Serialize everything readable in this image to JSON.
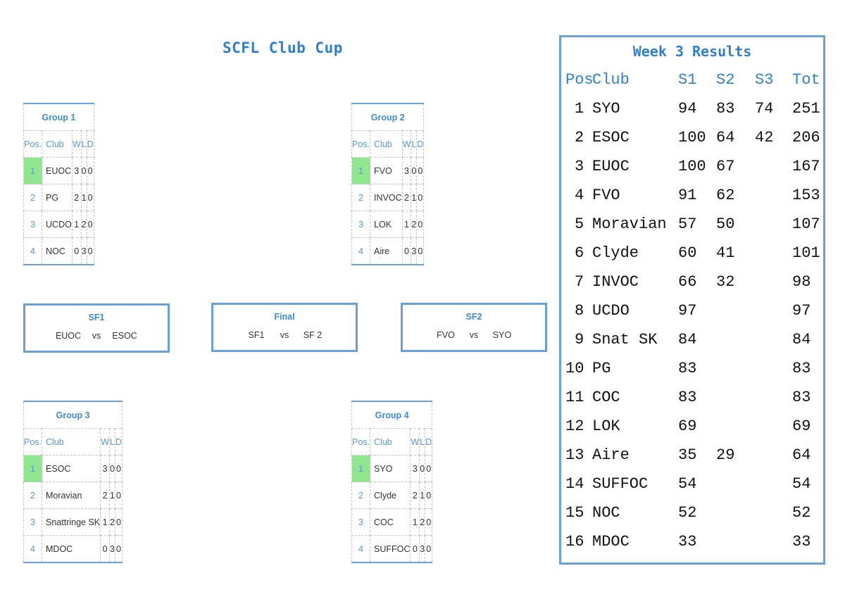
{
  "title": "SCFL Club Cup",
  "col_headers": {
    "pos": "Pos.",
    "club": "Club",
    "w": "W",
    "l": "L",
    "d": "D"
  },
  "groups": [
    {
      "name": "Group 1",
      "rows": [
        {
          "pos": "1",
          "club": "EUOC",
          "w": "3",
          "l": "0",
          "d": "0"
        },
        {
          "pos": "2",
          "club": "PG",
          "w": "2",
          "l": "1",
          "d": "0"
        },
        {
          "pos": "3",
          "club": "UCDO",
          "w": "1",
          "l": "2",
          "d": "0"
        },
        {
          "pos": "4",
          "club": "NOC",
          "w": "0",
          "l": "3",
          "d": "0"
        }
      ]
    },
    {
      "name": "Group 2",
      "rows": [
        {
          "pos": "1",
          "club": "FVO",
          "w": "3",
          "l": "0",
          "d": "0"
        },
        {
          "pos": "2",
          "club": "INVOC",
          "w": "2",
          "l": "1",
          "d": "0"
        },
        {
          "pos": "3",
          "club": "LOK",
          "w": "1",
          "l": "2",
          "d": "0"
        },
        {
          "pos": "4",
          "club": "Aire",
          "w": "0",
          "l": "3",
          "d": "0"
        }
      ]
    },
    {
      "name": "Group 3",
      "rows": [
        {
          "pos": "1",
          "club": "ESOC",
          "w": "3",
          "l": "0",
          "d": "0"
        },
        {
          "pos": "2",
          "club": "Moravian",
          "w": "2",
          "l": "1",
          "d": "0"
        },
        {
          "pos": "3",
          "club": "Snattringe SK",
          "w": "1",
          "l": "2",
          "d": "0"
        },
        {
          "pos": "4",
          "club": "MDOC",
          "w": "0",
          "l": "3",
          "d": "0"
        }
      ]
    },
    {
      "name": "Group 4",
      "rows": [
        {
          "pos": "1",
          "club": "SYO",
          "w": "3",
          "l": "0",
          "d": "0"
        },
        {
          "pos": "2",
          "club": "Clyde",
          "w": "2",
          "l": "1",
          "d": "0"
        },
        {
          "pos": "3",
          "club": "COC",
          "w": "1",
          "l": "2",
          "d": "0"
        },
        {
          "pos": "4",
          "club": "SUFFOC",
          "w": "0",
          "l": "3",
          "d": "0"
        }
      ]
    }
  ],
  "matches": {
    "sf1": {
      "title": "SF1",
      "a": "EUOC",
      "vs": "vs",
      "b": "ESOC"
    },
    "final": {
      "title": "Final",
      "a": "SF1",
      "vs": "vs",
      "b": "SF 2"
    },
    "sf2": {
      "title": "SF2",
      "a": "FVO",
      "vs": "vs",
      "b": "SYO"
    }
  },
  "results": {
    "title": "Week 3 Results",
    "headers": {
      "pos": "Pos",
      "club": "Club",
      "s1": "S1",
      "s2": "S2",
      "s3": "S3",
      "tot": "Tot"
    },
    "rows": [
      {
        "pos": "1",
        "club": "SYO",
        "s1": "94",
        "s2": "83",
        "s3": "74",
        "tot": "251"
      },
      {
        "pos": "2",
        "club": "ESOC",
        "s1": "100",
        "s2": "64",
        "s3": "42",
        "tot": "206"
      },
      {
        "pos": "3",
        "club": "EUOC",
        "s1": "100",
        "s2": "67",
        "s3": "",
        "tot": "167"
      },
      {
        "pos": "4",
        "club": "FVO",
        "s1": "91",
        "s2": "62",
        "s3": "",
        "tot": "153"
      },
      {
        "pos": "5",
        "club": "Moravian",
        "s1": "57",
        "s2": "50",
        "s3": "",
        "tot": "107"
      },
      {
        "pos": "6",
        "club": "Clyde",
        "s1": "60",
        "s2": "41",
        "s3": "",
        "tot": "101"
      },
      {
        "pos": "7",
        "club": "INVOC",
        "s1": "66",
        "s2": "32",
        "s3": "",
        "tot": "98"
      },
      {
        "pos": "8",
        "club": "UCDO",
        "s1": "97",
        "s2": "",
        "s3": "",
        "tot": "97"
      },
      {
        "pos": "9",
        "club": "Snat SK",
        "s1": "84",
        "s2": "",
        "s3": "",
        "tot": "84"
      },
      {
        "pos": "10",
        "club": "PG",
        "s1": "83",
        "s2": "",
        "s3": "",
        "tot": "83"
      },
      {
        "pos": "11",
        "club": "COC",
        "s1": "83",
        "s2": "",
        "s3": "",
        "tot": "83"
      },
      {
        "pos": "12",
        "club": "LOK",
        "s1": "69",
        "s2": "",
        "s3": "",
        "tot": "69"
      },
      {
        "pos": "13",
        "club": "Aire",
        "s1": "35",
        "s2": "29",
        "s3": "",
        "tot": "64"
      },
      {
        "pos": "14",
        "club": "SUFFOC",
        "s1": "54",
        "s2": "",
        "s3": "",
        "tot": "54"
      },
      {
        "pos": "15",
        "club": "NOC",
        "s1": "52",
        "s2": "",
        "s3": "",
        "tot": "52"
      },
      {
        "pos": "16",
        "club": "MDOC",
        "s1": "33",
        "s2": "",
        "s3": "",
        "tot": "33"
      }
    ]
  },
  "colors": {
    "accent": "#2f7fd1",
    "border": "#6aa0d8",
    "leader": "#8fe68f"
  }
}
